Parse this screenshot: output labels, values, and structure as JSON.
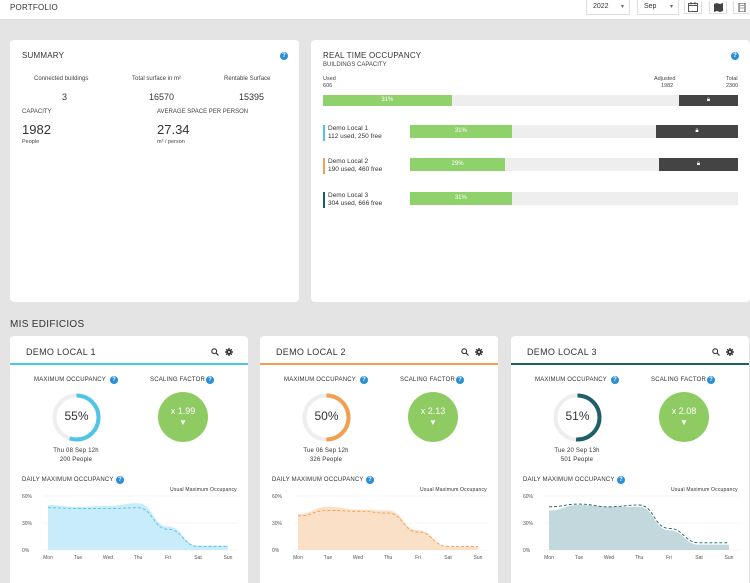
{
  "header": {
    "title": "PORTFOLIO",
    "year": "2022",
    "month": "Sep"
  },
  "summary": {
    "title": "SUMMARY",
    "connected_label": "Connected buildings",
    "connected_value": "3",
    "surface_label": "Total surface in m²",
    "surface_value": "16570",
    "rentable_label": "Rentable Surface",
    "rentable_value": "15395",
    "capacity_label": "CAPACITY",
    "capacity_value": "1982",
    "capacity_unit": "People",
    "avg_label": "AVERAGE SPACE PER PERSON",
    "avg_value": "27.34",
    "avg_unit": "m² / person"
  },
  "realtime": {
    "title": "REAL TIME OCCUPANCY",
    "subtitle": "BUILDINGS CAPACITY",
    "used_label": "Used",
    "used_value": "606",
    "adjusted_label": "Adjusted",
    "adjusted_value": "1982",
    "total_label": "Total",
    "total_value": "2300",
    "total_percent": 31,
    "total_percent_label": "31%",
    "locals": [
      {
        "name": "Demo Local 1",
        "detail": "112 used, 250 free",
        "percent": 31,
        "percent_label": "31%",
        "color": "#4fc3e8",
        "locked": true
      },
      {
        "name": "Demo Local 2",
        "detail": "190 used, 460 free",
        "percent": 29,
        "percent_label": "29%",
        "color": "#f0a050",
        "locked": true
      },
      {
        "name": "Demo Local 3",
        "detail": "304 used, 666 free",
        "percent": 31,
        "percent_label": "31%",
        "color": "#1f5f68",
        "locked": false
      }
    ]
  },
  "section_title": "MIS EDIFICIOS",
  "buildings": [
    {
      "name": "DEMO LOCAL 1",
      "accent": "#4fc3e8",
      "max_label": "MAXIMUM OCCUPANCY",
      "max_percent": 55,
      "max_percent_label": "55%",
      "max_date": "Thu 08 Sep 12h",
      "max_people": "200 People",
      "scale_label": "SCALING FACTOR",
      "scale_value": "x 1.99",
      "daily_label": "DAILY MAXIMUM OCCUPANCY",
      "usual_label": "Usual Maximum Occupancy",
      "fill": "#c9ecfa",
      "line": "#4fc3e8",
      "chart_data": {
        "type": "area",
        "categories": [
          "Mon",
          "Tue",
          "Wed",
          "Thu",
          "Fri",
          "Sat",
          "Sun"
        ],
        "yticks": [
          "60%",
          "30%",
          "0%"
        ],
        "ylim": [
          0,
          60
        ],
        "area_values": [
          50,
          48,
          49,
          52,
          26,
          5,
          5
        ],
        "line_values": [
          47,
          46,
          46,
          47,
          23,
          4,
          4
        ]
      }
    },
    {
      "name": "DEMO LOCAL 2",
      "accent": "#f0a050",
      "max_label": "MAXIMUM OCCUPANCY",
      "max_percent": 50,
      "max_percent_label": "50%",
      "max_date": "Tue 06 Sep 12h",
      "max_people": "326 People",
      "scale_label": "SCALING FACTOR",
      "scale_value": "x 2.13",
      "daily_label": "DAILY MAXIMUM OCCUPANCY",
      "usual_label": "Usual Maximum Occupancy",
      "fill": "#fbe0c8",
      "line": "#f0a050",
      "chart_data": {
        "type": "area",
        "categories": [
          "Mon",
          "Tue",
          "Wed",
          "Thu",
          "Fri",
          "Sat",
          "Sun"
        ],
        "yticks": [
          "60%",
          "30%",
          "0%"
        ],
        "ylim": [
          0,
          60
        ],
        "area_values": [
          40,
          48,
          45,
          44,
          22,
          4,
          4
        ],
        "line_values": [
          38,
          44,
          43,
          41,
          20,
          4,
          4
        ]
      }
    },
    {
      "name": "DEMO LOCAL 3",
      "accent": "#1f5f68",
      "max_label": "MAXIMUM OCCUPANCY",
      "max_percent": 51,
      "max_percent_label": "51%",
      "max_date": "Tue 20 Sep 13h",
      "max_people": "501 People",
      "scale_label": "SCALING FACTOR",
      "scale_value": "x 2.08",
      "daily_label": "DAILY MAXIMUM OCCUPANCY",
      "usual_label": "Usual Maximum Occupancy",
      "fill": "#c3d8dc",
      "line": "#1f5f68",
      "chart_data": {
        "type": "area",
        "categories": [
          "Mon",
          "Tue",
          "Wed",
          "Thu",
          "Fri",
          "Sat",
          "Sun"
        ],
        "yticks": [
          "60%",
          "30%",
          "0%"
        ],
        "ylim": [
          0,
          60
        ],
        "area_values": [
          44,
          50,
          48,
          48,
          22,
          6,
          6
        ],
        "line_values": [
          48,
          51,
          48,
          50,
          24,
          8,
          8
        ]
      }
    }
  ]
}
